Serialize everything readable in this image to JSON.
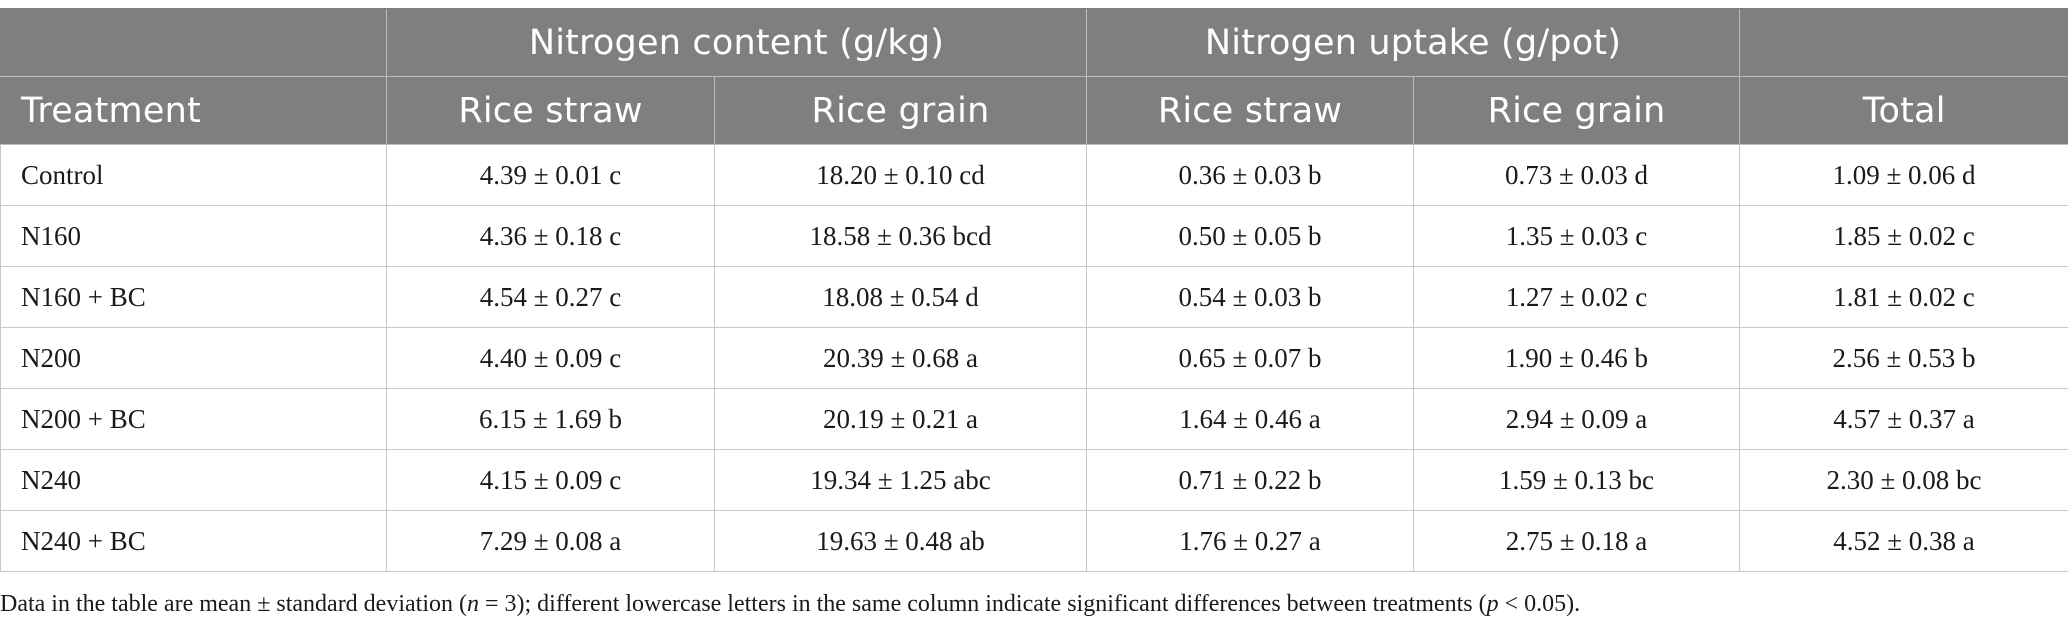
{
  "table": {
    "group_headers": {
      "nitrogen_content": "Nitrogen content (g/kg)",
      "nitrogen_uptake": "Nitrogen uptake (g/pot)"
    },
    "columns": [
      "Treatment",
      "Rice straw",
      "Rice grain",
      "Rice straw",
      "Rice grain",
      "Total"
    ],
    "rows": [
      [
        "Control",
        "4.39 ± 0.01 c",
        "18.20 ± 0.10 cd",
        "0.36 ± 0.03 b",
        "0.73 ± 0.03 d",
        "1.09 ± 0.06 d"
      ],
      [
        "N160",
        "4.36 ± 0.18 c",
        "18.58 ± 0.36 bcd",
        "0.50 ± 0.05 b",
        "1.35 ± 0.03 c",
        "1.85 ± 0.02 c"
      ],
      [
        "N160 + BC",
        "4.54 ± 0.27 c",
        "18.08 ± 0.54 d",
        "0.54 ± 0.03 b",
        "1.27 ± 0.02 c",
        "1.81 ± 0.02 c"
      ],
      [
        "N200",
        "4.40 ± 0.09 c",
        "20.39 ± 0.68 a",
        "0.65 ± 0.07 b",
        "1.90 ± 0.46 b",
        "2.56 ± 0.53 b"
      ],
      [
        "N200 + BC",
        "6.15 ± 1.69 b",
        "20.19 ± 0.21 a",
        "1.64 ± 0.46 a",
        "2.94 ± 0.09 a",
        "4.57 ± 0.37 a"
      ],
      [
        "N240",
        "4.15 ± 0.09 c",
        "19.34 ± 1.25 abc",
        "0.71 ± 0.22 b",
        "1.59 ± 0.13 bc",
        "2.30 ± 0.08 bc"
      ],
      [
        "N240 + BC",
        "7.29 ± 0.08 a",
        "19.63 ± 0.48 ab",
        "1.76 ± 0.27 a",
        "2.75 ± 0.18 a",
        "4.52 ± 0.38 a"
      ]
    ]
  },
  "footnote": {
    "part1": "Data in the table are mean ± standard deviation (",
    "n_italic": "n",
    "part2": " = 3); different lowercase letters in the same column indicate significant differences between treatments (",
    "p_italic": "p",
    "part3": " < 0.05)."
  }
}
